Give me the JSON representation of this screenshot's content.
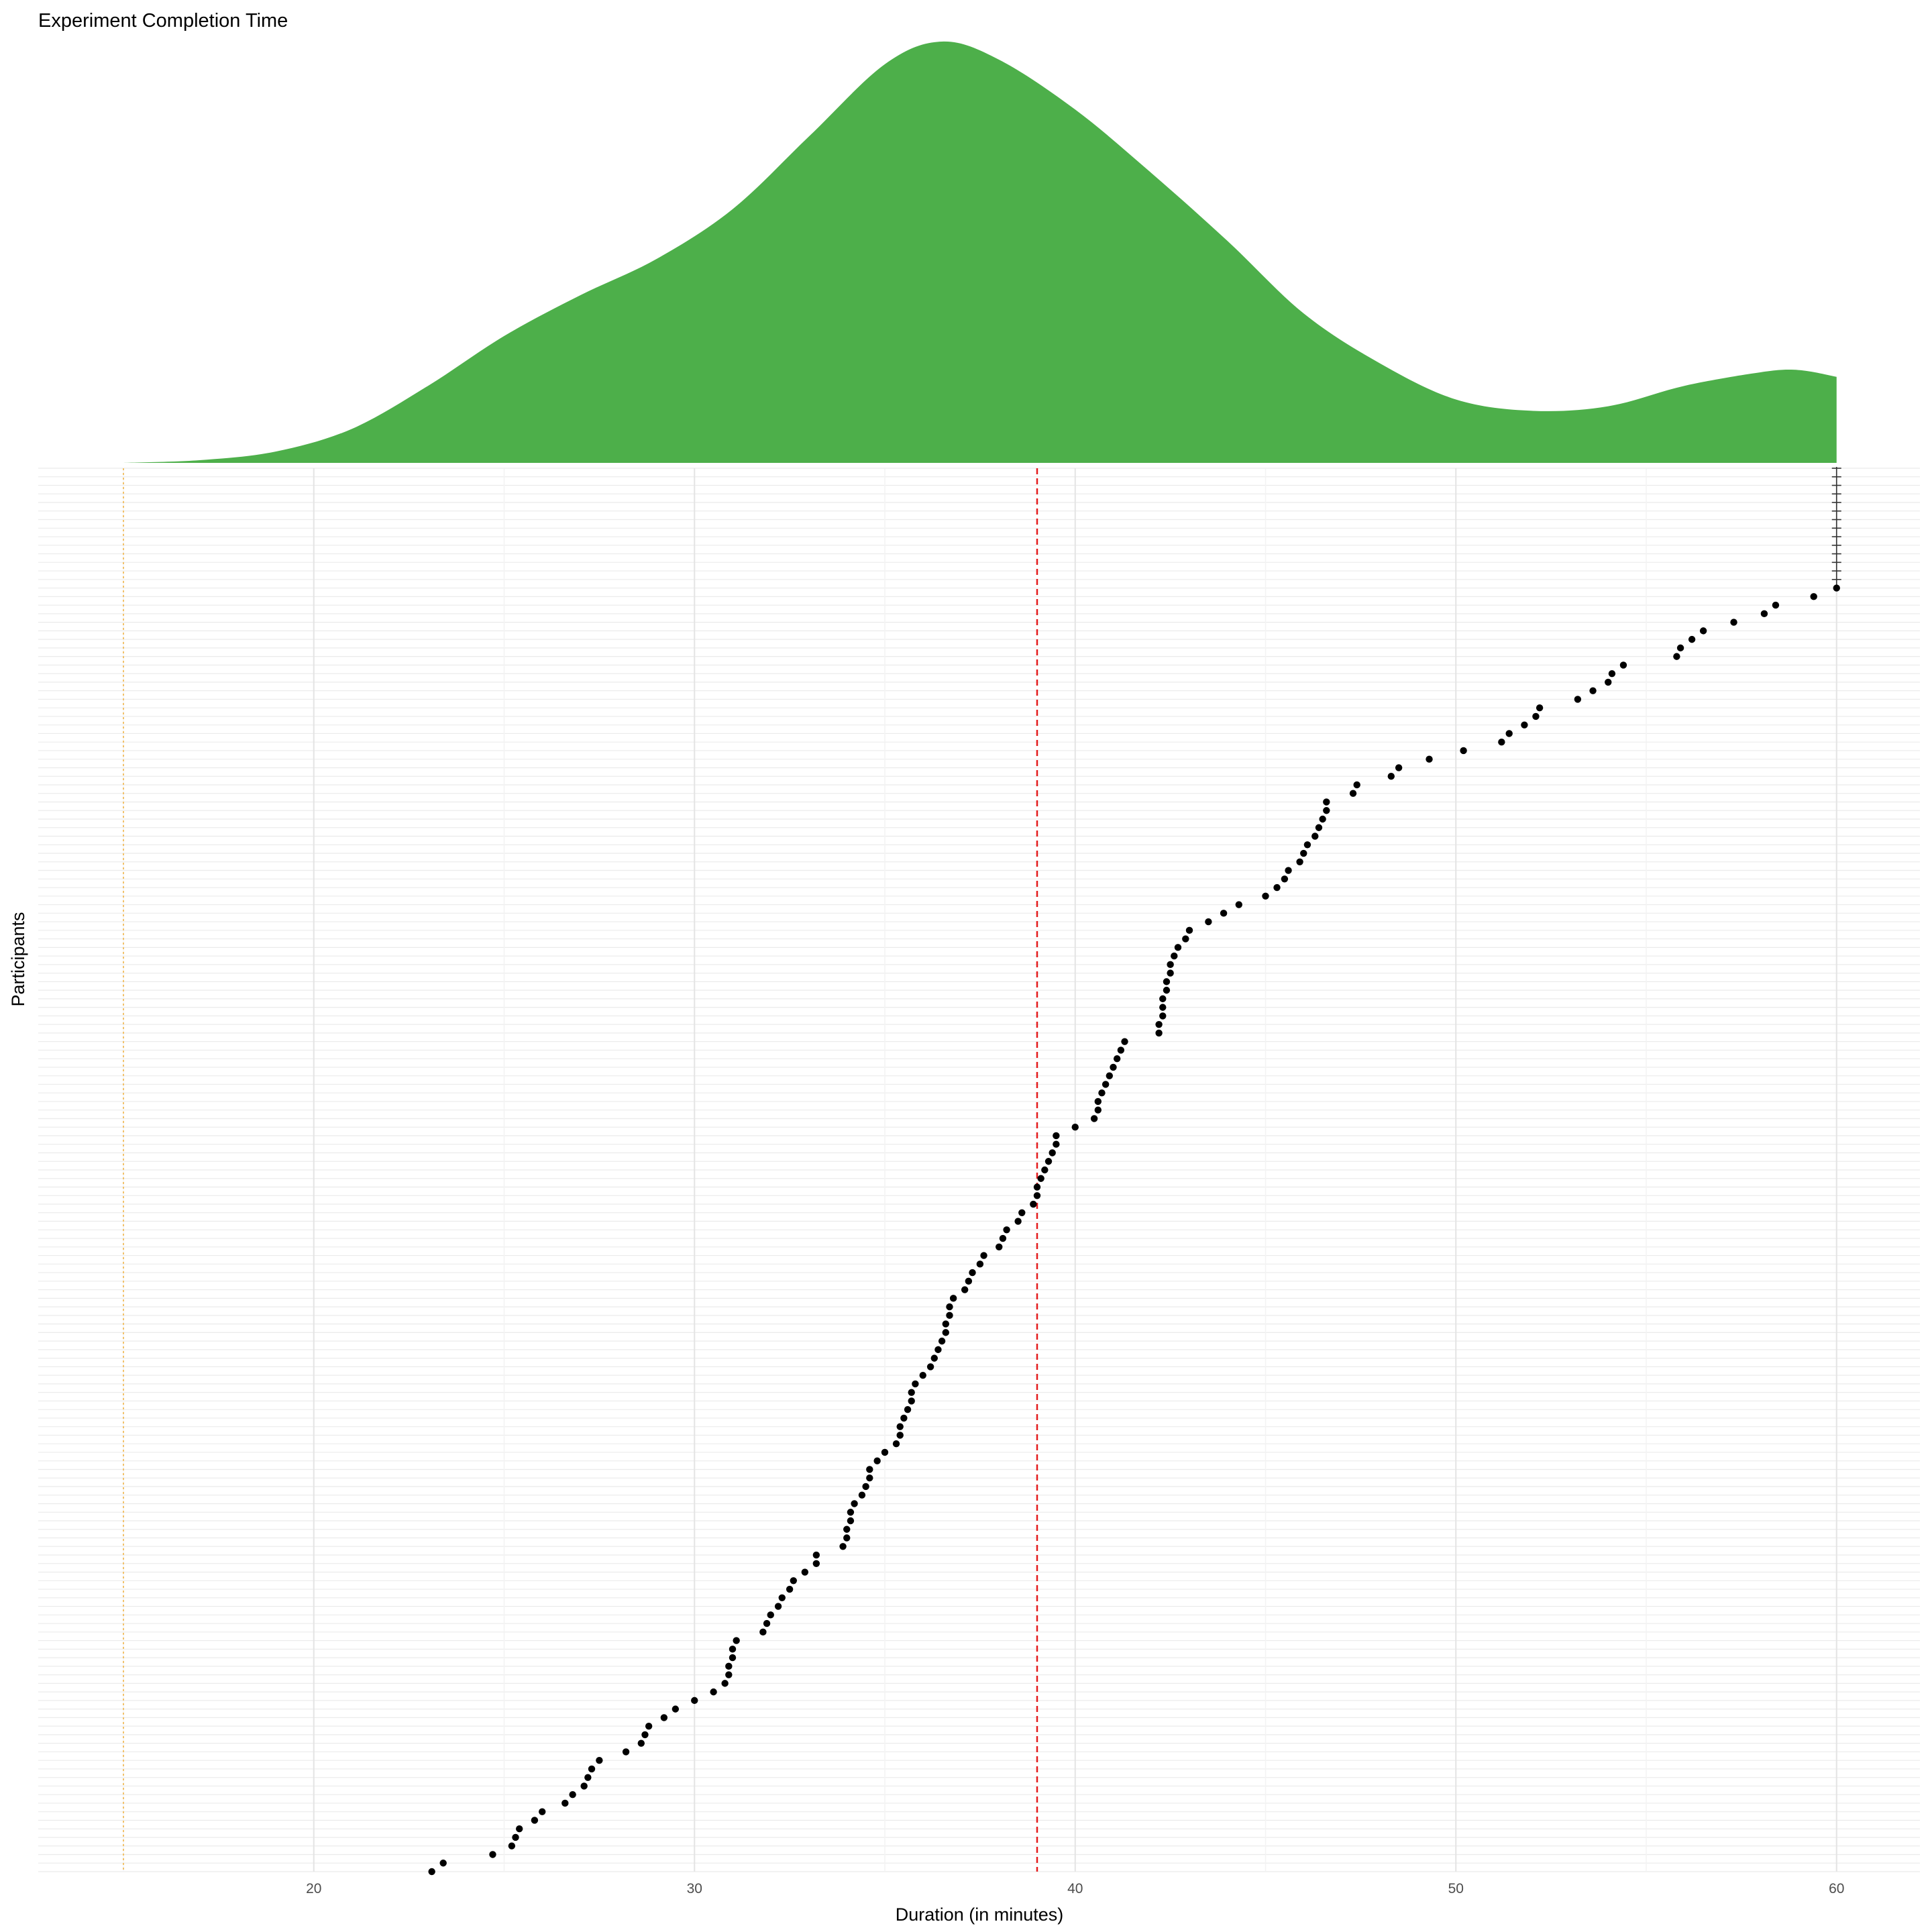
{
  "chart_data": {
    "type": "scatter",
    "title": "Experiment Completion Time",
    "xlabel": "Duration (in minutes)",
    "ylabel": "Participants",
    "xlim": [
      12.5,
      62
    ],
    "x_ticks": [
      20,
      30,
      40,
      50,
      60
    ],
    "grid": true,
    "legend": "none",
    "reference_lines": {
      "median": 39,
      "min_threshold": 15
    },
    "censor_value": 60,
    "censored_count": 14,
    "density_color": "#4daf4a",
    "point_color": "#000000",
    "median_line_color": "#e41a1c",
    "threshold_line_color": "#f2c26b",
    "density_curve": [
      [
        15,
        0
      ],
      [
        17,
        0.006
      ],
      [
        19,
        0.025
      ],
      [
        21,
        0.075
      ],
      [
        23,
        0.17
      ],
      [
        25,
        0.28
      ],
      [
        27,
        0.37
      ],
      [
        29,
        0.45
      ],
      [
        31,
        0.56
      ],
      [
        33,
        0.72
      ],
      [
        35,
        0.88
      ],
      [
        36.5,
        0.93
      ],
      [
        38,
        0.89
      ],
      [
        40,
        0.78
      ],
      [
        42,
        0.64
      ],
      [
        44,
        0.49
      ],
      [
        46,
        0.33
      ],
      [
        48,
        0.22
      ],
      [
        50,
        0.14
      ],
      [
        52,
        0.115
      ],
      [
        54,
        0.125
      ],
      [
        56,
        0.17
      ],
      [
        58,
        0.2
      ],
      [
        59,
        0.205
      ],
      [
        60,
        0.19
      ]
    ],
    "durations": [
      23.1,
      23.4,
      24.7,
      25.2,
      25.3,
      25.4,
      25.8,
      26.0,
      26.6,
      26.8,
      27.1,
      27.2,
      27.3,
      27.5,
      28.2,
      28.6,
      28.7,
      28.8,
      29.2,
      29.5,
      30.0,
      30.5,
      30.8,
      30.9,
      30.9,
      31.0,
      31.0,
      31.1,
      31.8,
      31.9,
      32.0,
      32.2,
      32.3,
      32.5,
      32.6,
      32.9,
      33.2,
      33.2,
      33.9,
      34.0,
      34.0,
      34.1,
      34.1,
      34.2,
      34.4,
      34.5,
      34.6,
      34.6,
      34.8,
      35.0,
      35.3,
      35.4,
      35.4,
      35.5,
      35.6,
      35.7,
      35.7,
      35.8,
      36.0,
      36.2,
      36.3,
      36.4,
      36.5,
      36.6,
      36.6,
      36.7,
      36.7,
      36.8,
      37.1,
      37.2,
      37.3,
      37.5,
      37.6,
      38.0,
      38.1,
      38.2,
      38.5,
      38.6,
      38.9,
      39.0,
      39.0,
      39.1,
      39.2,
      39.3,
      39.4,
      39.5,
      39.5,
      40.0,
      40.5,
      40.6,
      40.6,
      40.7,
      40.8,
      40.9,
      41.0,
      41.1,
      41.2,
      41.3,
      42.2,
      42.2,
      42.3,
      42.3,
      42.3,
      42.4,
      42.4,
      42.5,
      42.5,
      42.6,
      42.7,
      42.9,
      43.0,
      43.5,
      43.9,
      44.3,
      45.0,
      45.3,
      45.5,
      45.6,
      45.9,
      46.0,
      46.1,
      46.3,
      46.4,
      46.5,
      46.6,
      46.6,
      47.3,
      47.4,
      48.3,
      48.5,
      49.3,
      50.2,
      51.2,
      51.4,
      51.8,
      52.1,
      52.2,
      53.2,
      53.6,
      54.0,
      54.1,
      54.4,
      55.8,
      55.9,
      56.2,
      56.5,
      57.3,
      58.1,
      58.4,
      59.4,
      60.0
    ]
  }
}
